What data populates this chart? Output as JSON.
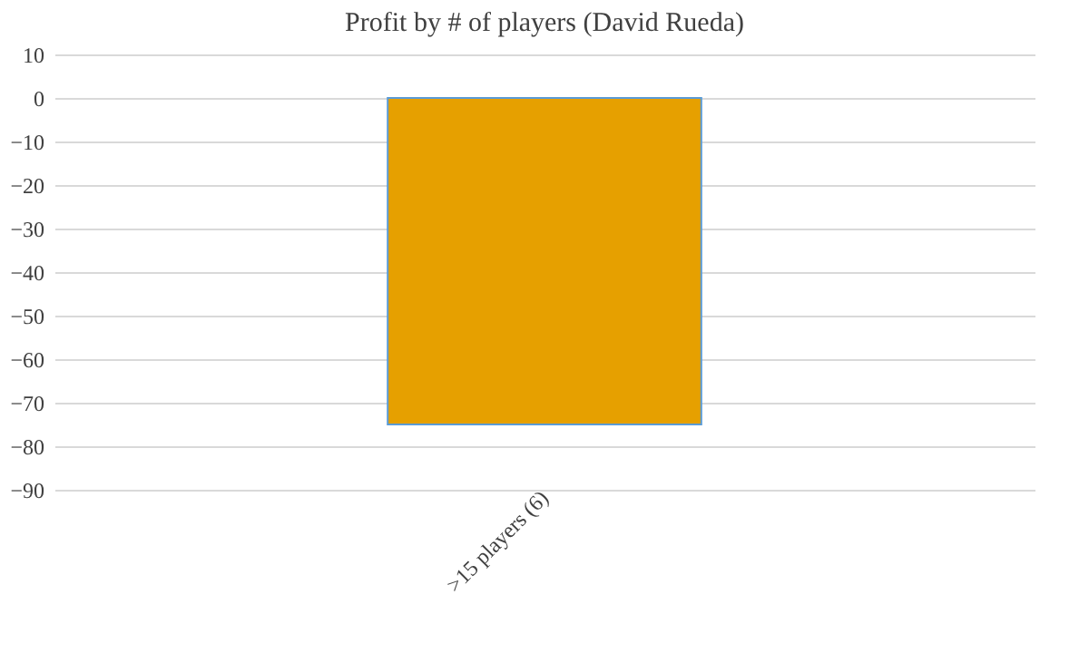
{
  "chart_data": {
    "type": "bar",
    "title": "Profit by # of players  (David Rueda)",
    "categories": [
      ">15 players (6)"
    ],
    "values": [
      -75
    ],
    "color": "#e6a000",
    "ylim": [
      -90,
      10
    ],
    "yticks": [
      -90,
      -80,
      -70,
      -60,
      -50,
      -40,
      -30,
      -20,
      -10,
      0,
      10
    ],
    "grid": true
  }
}
